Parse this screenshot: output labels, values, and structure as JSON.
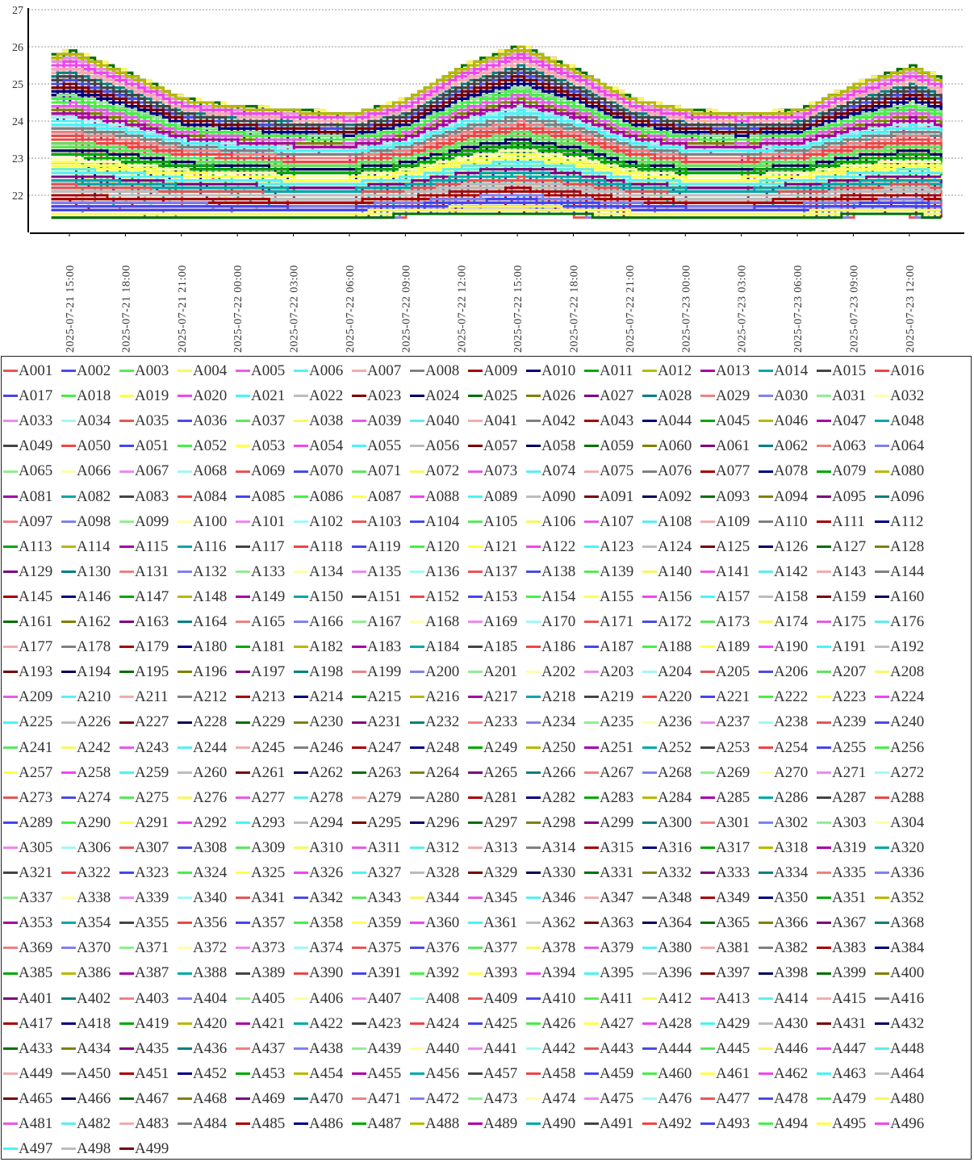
{
  "chart_data": {
    "type": "line",
    "title": "",
    "xlabel": "",
    "ylabel": "",
    "ylim": [
      21,
      27
    ],
    "yticks": [
      22,
      23,
      24,
      25,
      26,
      27
    ],
    "xticks": [
      "2025-07-21 15:00",
      "2025-07-21 18:00",
      "2025-07-21 21:00",
      "2025-07-22 00:00",
      "2025-07-22 03:00",
      "2025-07-22 06:00",
      "2025-07-22 09:00",
      "2025-07-22 12:00",
      "2025-07-22 15:00",
      "2025-07-22 18:00",
      "2025-07-22 21:00",
      "2025-07-23 00:00",
      "2025-07-23 03:00",
      "2025-07-23 06:00",
      "2025-07-23 09:00",
      "2025-07-23 12:00"
    ],
    "xrange": [
      "2025-07-21 13:50",
      "2025-07-23 13:50"
    ],
    "grid": "horizontal dotted",
    "legend_placement": "bottom",
    "envelope": {
      "times": [
        "2025-07-21 14:00",
        "2025-07-21 15:00",
        "2025-07-21 18:00",
        "2025-07-21 21:00",
        "2025-07-22 00:00",
        "2025-07-22 03:00",
        "2025-07-22 06:00",
        "2025-07-22 09:00",
        "2025-07-22 12:00",
        "2025-07-22 15:00",
        "2025-07-22 18:00",
        "2025-07-22 21:00",
        "2025-07-23 00:00",
        "2025-07-23 03:00",
        "2025-07-23 06:00",
        "2025-07-23 09:00",
        "2025-07-23 12:00",
        "2025-07-23 13:45"
      ],
      "upper": [
        25.8,
        25.9,
        25.3,
        24.6,
        24.4,
        24.3,
        24.2,
        24.6,
        25.5,
        26.05,
        25.4,
        24.6,
        24.3,
        24.2,
        24.3,
        25.0,
        25.5,
        25.1
      ],
      "median": [
        23.8,
        23.8,
        23.6,
        23.3,
        23.2,
        23.1,
        23.1,
        23.3,
        23.8,
        24.1,
        23.8,
        23.3,
        23.1,
        23.1,
        23.2,
        23.5,
        23.7,
        23.6
      ],
      "lower": [
        21.35,
        21.35,
        21.35,
        21.4,
        21.4,
        21.4,
        21.4,
        21.45,
        21.5,
        21.5,
        21.45,
        21.4,
        21.4,
        21.4,
        21.4,
        21.45,
        21.45,
        21.4
      ]
    },
    "palette": [
      "#e85555",
      "#4a4ae8",
      "#5ae85a",
      "#f8f860",
      "#e85ae8",
      "#5aefef",
      "#f2acac",
      "#808080",
      "#a80000",
      "#000080",
      "#00a800",
      "#b8b800",
      "#a800a8",
      "#00a8a8",
      "#444444",
      "#f04444",
      "#4444f0",
      "#44f044",
      "#ffff48",
      "#f044f0",
      "#48f4f4",
      "#bcbcbc",
      "#7a0000",
      "#000060",
      "#007000",
      "#808000",
      "#800080",
      "#008080",
      "#f08080",
      "#8080f0",
      "#90ee90",
      "#ffffa8",
      "#f088f0",
      "#a0f8f8"
    ],
    "series_names": [
      "A001",
      "A002",
      "A003",
      "A004",
      "A005",
      "A006",
      "A007",
      "A008",
      "A009",
      "A010",
      "A011",
      "A012",
      "A013",
      "A014",
      "A015",
      "A016",
      "A017",
      "A018",
      "A019",
      "A020",
      "A021",
      "A022",
      "A023",
      "A024",
      "A025",
      "A026",
      "A027",
      "A028",
      "A029",
      "A030",
      "A031",
      "A032",
      "A033",
      "A034",
      "A035",
      "A036",
      "A037",
      "A038",
      "A039",
      "A040",
      "A041",
      "A042",
      "A043",
      "A044",
      "A045",
      "A046",
      "A047",
      "A048",
      "A049",
      "A050",
      "A051",
      "A052",
      "A053",
      "A054",
      "A055",
      "A056",
      "A057",
      "A058",
      "A059",
      "A060",
      "A061",
      "A062",
      "A063",
      "A064",
      "A065",
      "A066",
      "A067",
      "A068",
      "A069",
      "A070",
      "A071",
      "A072",
      "A073",
      "A074",
      "A075",
      "A076",
      "A077",
      "A078",
      "A079",
      "A080",
      "A081",
      "A082",
      "A083",
      "A084",
      "A085",
      "A086",
      "A087",
      "A088",
      "A089",
      "A090",
      "A091",
      "A092",
      "A093",
      "A094",
      "A095",
      "A096",
      "A097",
      "A098",
      "A099",
      "A100",
      "A101",
      "A102",
      "A103",
      "A104",
      "A105",
      "A106",
      "A107",
      "A108",
      "A109",
      "A110",
      "A111",
      "A112",
      "A113",
      "A114",
      "A115",
      "A116",
      "A117",
      "A118",
      "A119",
      "A120",
      "A121",
      "A122",
      "A123",
      "A124",
      "A125",
      "A126",
      "A127",
      "A128",
      "A129",
      "A130",
      "A131",
      "A132",
      "A133",
      "A134",
      "A135",
      "A136",
      "A137",
      "A138",
      "A139",
      "A140",
      "A141",
      "A142",
      "A143",
      "A144",
      "A145",
      "A146",
      "A147",
      "A148",
      "A149",
      "A150",
      "A151",
      "A152",
      "A153",
      "A154",
      "A155",
      "A156",
      "A157",
      "A158",
      "A159",
      "A160",
      "A161",
      "A162",
      "A163",
      "A164",
      "A165",
      "A166",
      "A167",
      "A168",
      "A169",
      "A170",
      "A171",
      "A172",
      "A173",
      "A174",
      "A175",
      "A176",
      "A177",
      "A178",
      "A179",
      "A180",
      "A181",
      "A182",
      "A183",
      "A184",
      "A185",
      "A186",
      "A187",
      "A188",
      "A189",
      "A190",
      "A191",
      "A192",
      "A193",
      "A194",
      "A195",
      "A196",
      "A197",
      "A198",
      "A199",
      "A200",
      "A201",
      "A202",
      "A203",
      "A204",
      "A205",
      "A206",
      "A207",
      "A208",
      "A209",
      "A210",
      "A211",
      "A212",
      "A213",
      "A214",
      "A215",
      "A216",
      "A217",
      "A218",
      "A219",
      "A220",
      "A221",
      "A222",
      "A223",
      "A224",
      "A225",
      "A226",
      "A227",
      "A228",
      "A229",
      "A230",
      "A231",
      "A232",
      "A233",
      "A234",
      "A235",
      "A236",
      "A237",
      "A238",
      "A239",
      "A240",
      "A241",
      "A242",
      "A243",
      "A244",
      "A245",
      "A246",
      "A247",
      "A248",
      "A249",
      "A250",
      "A251",
      "A252",
      "A253",
      "A254",
      "A255",
      "A256",
      "A257",
      "A258",
      "A259",
      "A260",
      "A261",
      "A262",
      "A263",
      "A264",
      "A265",
      "A266",
      "A267",
      "A268",
      "A269",
      "A270",
      "A271",
      "A272",
      "A273",
      "A274",
      "A275",
      "A276",
      "A277",
      "A278",
      "A279",
      "A280",
      "A281",
      "A282",
      "A283",
      "A284",
      "A285",
      "A286",
      "A287",
      "A288",
      "A289",
      "A290",
      "A291",
      "A292",
      "A293",
      "A294",
      "A295",
      "A296",
      "A297",
      "A298",
      "A299",
      "A300",
      "A301",
      "A302",
      "A303",
      "A304",
      "A305",
      "A306",
      "A307",
      "A308",
      "A309",
      "A310",
      "A311",
      "A312",
      "A313",
      "A314",
      "A315",
      "A316",
      "A317",
      "A318",
      "A319",
      "A320",
      "A321",
      "A322",
      "A323",
      "A324",
      "A325",
      "A326",
      "A327",
      "A328",
      "A329",
      "A330",
      "A331",
      "A332",
      "A333",
      "A334",
      "A335",
      "A336",
      "A337",
      "A338",
      "A339",
      "A340",
      "A341",
      "A342",
      "A343",
      "A344",
      "A345",
      "A346",
      "A347",
      "A348",
      "A349",
      "A350",
      "A351",
      "A352",
      "A353",
      "A354",
      "A355",
      "A356",
      "A357",
      "A358",
      "A359",
      "A360",
      "A361",
      "A362",
      "A363",
      "A364",
      "A365",
      "A366",
      "A367",
      "A368",
      "A369",
      "A370",
      "A371",
      "A372",
      "A373",
      "A374",
      "A375",
      "A376",
      "A377",
      "A378",
      "A379",
      "A380",
      "A381",
      "A382",
      "A383",
      "A384",
      "A385",
      "A386",
      "A387",
      "A388",
      "A389",
      "A390",
      "A391",
      "A392",
      "A393",
      "A394",
      "A395",
      "A396",
      "A397",
      "A398",
      "A399",
      "A400",
      "A401",
      "A402",
      "A403",
      "A404",
      "A405",
      "A406",
      "A407",
      "A408",
      "A409",
      "A410",
      "A411",
      "A412",
      "A413",
      "A414",
      "A415",
      "A416",
      "A417",
      "A418",
      "A419",
      "A420",
      "A421",
      "A422",
      "A423",
      "A424",
      "A425",
      "A426",
      "A427",
      "A428",
      "A429",
      "A430",
      "A431",
      "A432",
      "A433",
      "A434",
      "A435",
      "A436",
      "A437",
      "A438",
      "A439",
      "A440",
      "A441",
      "A442",
      "A443",
      "A444",
      "A445",
      "A446",
      "A447",
      "A448",
      "A449",
      "A450",
      "A451",
      "A452",
      "A453",
      "A454",
      "A455",
      "A456",
      "A457",
      "A458",
      "A459",
      "A460",
      "A461",
      "A462",
      "A463",
      "A464",
      "A465",
      "A466",
      "A467",
      "A468",
      "A469",
      "A470",
      "A471",
      "A472",
      "A473",
      "A474",
      "A475",
      "A476",
      "A477",
      "A478",
      "A479",
      "A480",
      "A481",
      "A482",
      "A483",
      "A484",
      "A485",
      "A486",
      "A487",
      "A488",
      "A489",
      "A490",
      "A491",
      "A492",
      "A493",
      "A494",
      "A495",
      "A496",
      "A497",
      "A498",
      "A499"
    ]
  }
}
